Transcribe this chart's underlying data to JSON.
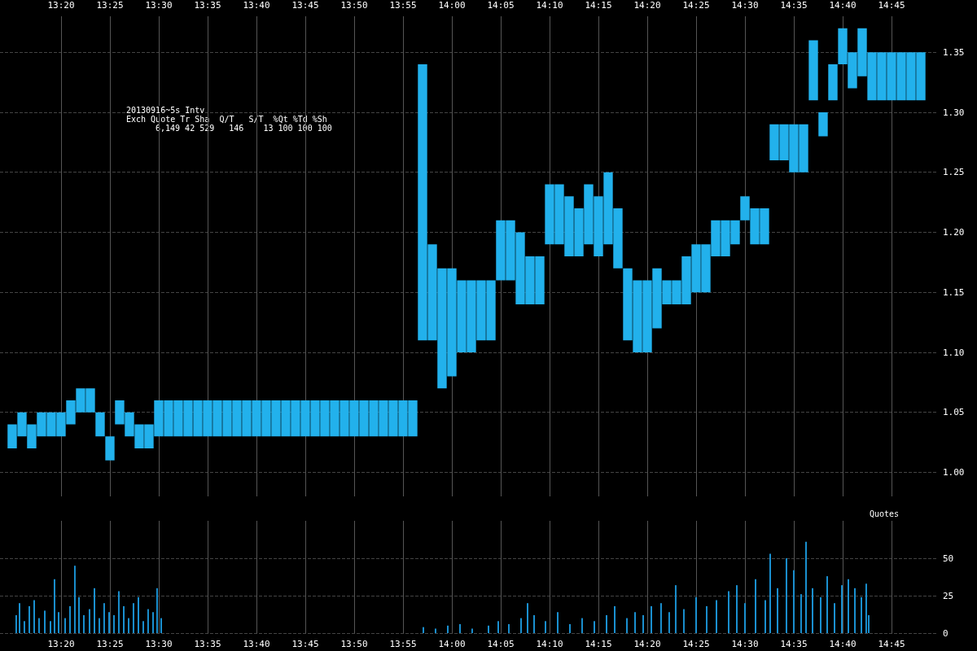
{
  "chart_data": [
    {
      "type": "bar",
      "title": "20130916~5s Intv",
      "annotations": [
        "Exch Quote Tr Sha  Q/T   S/T  %Qt %Td %Sh",
        "6,149 42 529   146    13 100 100 100"
      ],
      "x": [
        13.25,
        13.2667,
        13.2833,
        13.3,
        13.3167,
        13.3333,
        13.35,
        13.3667,
        13.3833,
        13.4,
        13.4167,
        13.4333,
        13.45,
        13.4667,
        13.4833,
        13.5,
        13.5167,
        13.5333,
        13.55,
        13.5667,
        13.5833,
        13.6,
        13.6167,
        13.6333,
        13.65,
        13.6667,
        13.6833,
        13.7,
        13.7167,
        13.7333,
        13.75,
        13.7667,
        13.7833,
        13.8,
        13.8167,
        13.8333,
        13.85,
        13.8667,
        13.8833,
        13.9,
        13.9167,
        13.9333,
        13.95,
        13.9667,
        13.9833,
        14,
        14.0167,
        14.0333,
        14.05,
        14.0667,
        14.0833,
        14.1,
        14.1167,
        14.1333,
        14.15,
        14.1667,
        14.1833,
        14.2,
        14.2167,
        14.2333,
        14.25,
        14.2667,
        14.2833,
        14.3,
        14.3167,
        14.3333,
        14.35,
        14.3667,
        14.3833,
        14.4,
        14.4167,
        14.4333,
        14.45,
        14.4667,
        14.4833,
        14.5,
        14.5167,
        14.5333,
        14.55,
        14.5667,
        14.5833,
        14.6,
        14.6167,
        14.6333,
        14.65,
        14.6667,
        14.6833,
        14.7,
        14.7167,
        14.7333,
        14.75,
        14.7667,
        14.7833,
        14.8
      ],
      "base": [
        1.02,
        1.03,
        1.02,
        1.03,
        1.03,
        1.03,
        1.04,
        1.05,
        1.05,
        1.03,
        1.01,
        1.04,
        1.03,
        1.02,
        1.02,
        1.03,
        1.03,
        1.03,
        1.03,
        1.03,
        1.03,
        1.03,
        1.03,
        1.03,
        1.03,
        1.03,
        1.03,
        1.03,
        1.03,
        1.03,
        1.03,
        1.03,
        1.03,
        1.03,
        1.03,
        1.03,
        1.03,
        1.03,
        1.03,
        1.03,
        1.03,
        1.03,
        1.11,
        1.11,
        1.07,
        1.08,
        1.1,
        1.1,
        1.11,
        1.11,
        1.16,
        1.16,
        1.14,
        1.14,
        1.14,
        1.19,
        1.19,
        1.18,
        1.18,
        1.19,
        1.18,
        1.19,
        1.17,
        1.11,
        1.1,
        1.1,
        1.12,
        1.14,
        1.14,
        1.14,
        1.15,
        1.15,
        1.18,
        1.18,
        1.19,
        1.21,
        1.19,
        1.19,
        1.26,
        1.26,
        1.25,
        1.25,
        1.31,
        1.28,
        1.31,
        1.34,
        1.32,
        1.33,
        1.31,
        1.31,
        1.31,
        1.31,
        1.31,
        1.31
      ],
      "values": [
        0.02,
        0.02,
        0.02,
        0.02,
        0.02,
        0.02,
        0.02,
        0.02,
        0.02,
        0.02,
        0.02,
        0.02,
        0.02,
        0.02,
        0.02,
        0.03,
        0.03,
        0.03,
        0.03,
        0.03,
        0.03,
        0.03,
        0.03,
        0.03,
        0.03,
        0.03,
        0.03,
        0.03,
        0.03,
        0.03,
        0.03,
        0.03,
        0.03,
        0.03,
        0.03,
        0.03,
        0.03,
        0.03,
        0.03,
        0.03,
        0.03,
        0.03,
        0.23,
        0.08,
        0.1,
        0.09,
        0.06,
        0.06,
        0.05,
        0.05,
        0.05,
        0.05,
        0.06,
        0.04,
        0.04,
        0.05,
        0.05,
        0.05,
        0.04,
        0.05,
        0.05,
        0.06,
        0.05,
        0.06,
        0.06,
        0.06,
        0.05,
        0.02,
        0.02,
        0.04,
        0.04,
        0.04,
        0.03,
        0.03,
        0.02,
        0.02,
        0.03,
        0.03,
        0.03,
        0.03,
        0.04,
        0.04,
        0.05,
        0.02,
        0.03,
        0.03,
        0.03,
        0.04,
        0.04,
        0.04,
        0.04,
        0.04,
        0.04,
        0.04
      ],
      "color": "#22b1ec",
      "xlim": [
        13.2292,
        14.8264
      ],
      "xticks": [
        {
          "value": 13.3333,
          "label": "13:20"
        },
        {
          "value": 13.4167,
          "label": "13:25"
        },
        {
          "value": 13.5,
          "label": "13:30"
        },
        {
          "value": 13.5833,
          "label": "13:35"
        },
        {
          "value": 13.6667,
          "label": "13:40"
        },
        {
          "value": 13.75,
          "label": "13:45"
        },
        {
          "value": 13.8333,
          "label": "13:50"
        },
        {
          "value": 13.9167,
          "label": "13:55"
        },
        {
          "value": 14,
          "label": "14:00"
        },
        {
          "value": 14.0833,
          "label": "14:05"
        },
        {
          "value": 14.1667,
          "label": "14:10"
        },
        {
          "value": 14.25,
          "label": "14:15"
        },
        {
          "value": 14.3333,
          "label": "14:20"
        },
        {
          "value": 14.4167,
          "label": "14:25"
        },
        {
          "value": 14.5,
          "label": "14:30"
        },
        {
          "value": 14.5833,
          "label": "14:35"
        },
        {
          "value": 14.6667,
          "label": "14:40"
        },
        {
          "value": 14.75,
          "label": "14:45"
        }
      ],
      "ylim": [
        0.98,
        1.38
      ],
      "yticks": [
        {
          "value": 1,
          "label": "1.00"
        },
        {
          "value": 1.05,
          "label": "1.05"
        },
        {
          "value": 1.1,
          "label": "1.10"
        },
        {
          "value": 1.15,
          "label": "1.15"
        },
        {
          "value": 1.2,
          "label": "1.20"
        },
        {
          "value": 1.25,
          "label": "1.25"
        },
        {
          "value": 1.3,
          "label": "1.30"
        },
        {
          "value": 1.35,
          "label": "1.35"
        }
      ],
      "grid": true
    },
    {
      "type": "bar",
      "ylabel": "Quotes",
      "x": [
        13.2569,
        13.2625,
        13.2708,
        13.2792,
        13.2875,
        13.2958,
        13.3056,
        13.3153,
        13.3222,
        13.3292,
        13.3403,
        13.3486,
        13.3569,
        13.3639,
        13.3722,
        13.3819,
        13.3903,
        13.3986,
        13.4069,
        13.4153,
        13.4236,
        13.4319,
        13.4403,
        13.4486,
        13.4569,
        13.4653,
        13.4736,
        13.4819,
        13.4903,
        13.4972,
        13.5042,
        13.9514,
        13.9722,
        13.9931,
        14.0139,
        14.0347,
        14.0625,
        14.0792,
        14.0972,
        14.1181,
        14.1292,
        14.1403,
        14.1597,
        14.1806,
        14.2014,
        14.2222,
        14.2431,
        14.2639,
        14.2778,
        14.2986,
        14.3125,
        14.3264,
        14.3403,
        14.3569,
        14.3708,
        14.3819,
        14.3958,
        14.4167,
        14.4347,
        14.4514,
        14.4722,
        14.4861,
        14.5,
        14.5181,
        14.5347,
        14.5431,
        14.5556,
        14.5708,
        14.5833,
        14.5958,
        14.6042,
        14.6153,
        14.6292,
        14.6403,
        14.6528,
        14.6653,
        14.6764,
        14.6875,
        14.6986,
        14.7069,
        14.7111
      ],
      "values": [
        12,
        20,
        8,
        18,
        22,
        10,
        15,
        8,
        36,
        14,
        10,
        18,
        45,
        24,
        12,
        16,
        30,
        10,
        20,
        14,
        12,
        28,
        18,
        10,
        20,
        24,
        8,
        16,
        14,
        30,
        10,
        4,
        3,
        5,
        6,
        3,
        5,
        8,
        6,
        10,
        20,
        12,
        8,
        14,
        6,
        10,
        8,
        12,
        18,
        10,
        14,
        12,
        18,
        20,
        14,
        32,
        16,
        24,
        18,
        22,
        28,
        32,
        20,
        36,
        22,
        53,
        30,
        50,
        42,
        26,
        61,
        30,
        24,
        38,
        20,
        32,
        36,
        30,
        24,
        33,
        12
      ],
      "color": "#1a90d0",
      "xlim": [
        13.2292,
        14.8264
      ],
      "xticks": [
        {
          "value": 13.3333,
          "label": "13:20"
        },
        {
          "value": 13.4167,
          "label": "13:25"
        },
        {
          "value": 13.5,
          "label": "13:30"
        },
        {
          "value": 13.5833,
          "label": "13:35"
        },
        {
          "value": 13.6667,
          "label": "13:40"
        },
        {
          "value": 13.75,
          "label": "13:45"
        },
        {
          "value": 13.8333,
          "label": "13:50"
        },
        {
          "value": 13.9167,
          "label": "13:55"
        },
        {
          "value": 14,
          "label": "14:00"
        },
        {
          "value": 14.0833,
          "label": "14:05"
        },
        {
          "value": 14.1667,
          "label": "14:10"
        },
        {
          "value": 14.25,
          "label": "14:15"
        },
        {
          "value": 14.3333,
          "label": "14:20"
        },
        {
          "value": 14.4167,
          "label": "14:25"
        },
        {
          "value": 14.5,
          "label": "14:30"
        },
        {
          "value": 14.5833,
          "label": "14:35"
        },
        {
          "value": 14.6667,
          "label": "14:40"
        },
        {
          "value": 14.75,
          "label": "14:45"
        }
      ],
      "ylim": [
        0,
        75
      ],
      "yticks": [
        0,
        25,
        50
      ],
      "grid": true
    }
  ]
}
